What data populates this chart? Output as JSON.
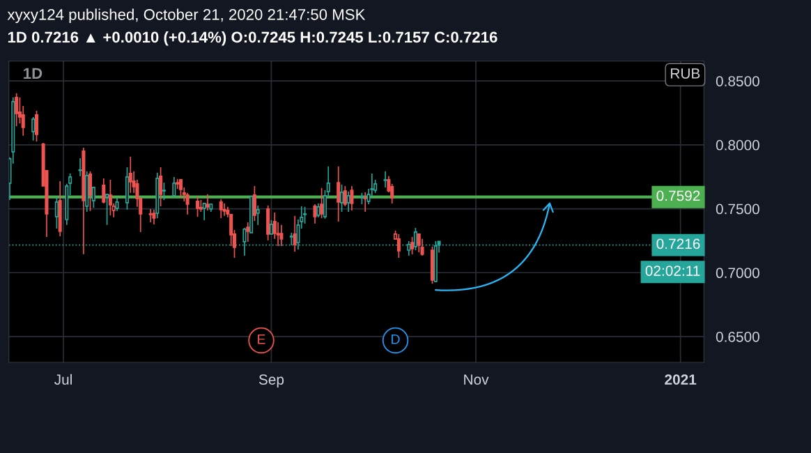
{
  "chart_data": {
    "type": "candlestick",
    "title": "xyxy124 published, October 21, 2020 21:47:50 MSK",
    "subtitle": "1D 0.7216 ▲ +0.0010 (+0.14%) O:0.7245 H:0.7245 L:0.7157 C:0.7216",
    "x": [
      "2020-06-15",
      "2020-06-16",
      "2020-06-17",
      "2020-06-18",
      "2020-06-19",
      "2020-06-22",
      "2020-06-23",
      "2020-06-25",
      "2020-06-26",
      "2020-06-29",
      "2020-06-30",
      "2020-07-02",
      "2020-07-03",
      "2020-07-06",
      "2020-07-07",
      "2020-07-08",
      "2020-07-09",
      "2020-07-10",
      "2020-07-13",
      "2020-07-14",
      "2020-07-15",
      "2020-07-16",
      "2020-07-17",
      "2020-07-20",
      "2020-07-21",
      "2020-07-22",
      "2020-07-23",
      "2020-07-24",
      "2020-07-27",
      "2020-07-28",
      "2020-07-29",
      "2020-07-30",
      "2020-07-31",
      "2020-08-03",
      "2020-08-04",
      "2020-08-05",
      "2020-08-06",
      "2020-08-07",
      "2020-08-10",
      "2020-08-11",
      "2020-08-12",
      "2020-08-13",
      "2020-08-14",
      "2020-08-17",
      "2020-08-18",
      "2020-08-19",
      "2020-08-20",
      "2020-08-21",
      "2020-08-24",
      "2020-08-25",
      "2020-08-26",
      "2020-08-27",
      "2020-08-28",
      "2020-08-31",
      "2020-09-01",
      "2020-09-02",
      "2020-09-03",
      "2020-09-04",
      "2020-09-07",
      "2020-09-08",
      "2020-09-09",
      "2020-09-10",
      "2020-09-11",
      "2020-09-14",
      "2020-09-15",
      "2020-09-16",
      "2020-09-17",
      "2020-09-18",
      "2020-09-21",
      "2020-09-22",
      "2020-09-23",
      "2020-09-24",
      "2020-09-25",
      "2020-09-28",
      "2020-09-29",
      "2020-09-30",
      "2020-10-01",
      "2020-10-02",
      "2020-10-05",
      "2020-10-06",
      "2020-10-07",
      "2020-10-08",
      "2020-10-09",
      "2020-10-12",
      "2020-10-13",
      "2020-10-14",
      "2020-10-15",
      "2020-10-16",
      "2020-10-19",
      "2020-10-20",
      "2020-10-21"
    ],
    "ohlc": [
      [
        0.77,
        0.7902,
        0.7569,
        0.7891
      ],
      [
        0.7945,
        0.8371,
        0.7853,
        0.8338
      ],
      [
        0.8371,
        0.8404,
        0.8147,
        0.8245
      ],
      [
        0.8256,
        0.8371,
        0.8169,
        0.8218
      ],
      [
        0.8235,
        0.8305,
        0.8071,
        0.8136
      ],
      [
        0.8104,
        0.8218,
        0.8033,
        0.8202
      ],
      [
        0.8235,
        0.8267,
        0.8027,
        0.8082
      ],
      [
        0.8005,
        0.8016,
        0.7678,
        0.7678
      ],
      [
        0.7798,
        0.7798,
        0.728,
        0.746
      ],
      [
        0.7438,
        0.7591,
        0.7345,
        0.7553
      ],
      [
        0.7564,
        0.7716,
        0.7285,
        0.7324
      ],
      [
        0.7416,
        0.7695,
        0.7373,
        0.7678
      ],
      [
        0.77,
        0.7776,
        0.7607,
        0.7749
      ],
      [
        0.78,
        0.7896,
        0.7755,
        0.7804
      ],
      [
        0.7951,
        0.7978,
        0.7144,
        0.7564
      ],
      [
        0.752,
        0.7793,
        0.7476,
        0.776
      ],
      [
        0.7771,
        0.7793,
        0.7482,
        0.7607
      ],
      [
        0.7564,
        0.7673,
        0.7509,
        0.7667
      ],
      [
        0.7684,
        0.7738,
        0.7542,
        0.7553
      ],
      [
        0.7591,
        0.7613,
        0.7373,
        0.7613
      ],
      [
        0.7607,
        0.7727,
        0.7449,
        0.7531
      ],
      [
        0.7487,
        0.7542,
        0.7433,
        0.752
      ],
      [
        0.7504,
        0.7585,
        0.7482,
        0.7553
      ],
      [
        0.7547,
        0.7825,
        0.7493,
        0.7749
      ],
      [
        0.7776,
        0.7907,
        0.7624,
        0.7711
      ],
      [
        0.7716,
        0.7793,
        0.7624,
        0.7673
      ],
      [
        0.7695,
        0.7727,
        0.7515,
        0.758
      ],
      [
        0.758,
        0.758,
        0.7318,
        0.746
      ],
      [
        0.746,
        0.7498,
        0.7394,
        0.7455
      ],
      [
        0.7465,
        0.7493,
        0.7378,
        0.7427
      ],
      [
        0.7465,
        0.7782,
        0.7427,
        0.7738
      ],
      [
        0.7755,
        0.7825,
        0.752,
        0.7613
      ],
      [
        0.764,
        0.7705,
        0.7569,
        0.7645
      ],
      [
        0.7602,
        0.7749,
        0.7596,
        0.77
      ],
      [
        0.7705,
        0.7733,
        0.7656,
        0.7695
      ],
      [
        0.7727,
        0.7733,
        0.7591,
        0.7651
      ],
      [
        0.7624,
        0.7667,
        0.7558,
        0.7613
      ],
      [
        0.7607,
        0.7624,
        0.7455,
        0.7536
      ],
      [
        0.7558,
        0.7596,
        0.7438,
        0.7504
      ],
      [
        0.7509,
        0.7569,
        0.7476,
        0.7498
      ],
      [
        0.7504,
        0.7547,
        0.7411,
        0.7542
      ],
      [
        0.7536,
        0.7613,
        0.7487,
        0.7515
      ],
      [
        0.7498,
        0.7542,
        0.7476,
        0.7536
      ],
      [
        0.7553,
        0.7575,
        0.7427,
        0.7493
      ],
      [
        0.7493,
        0.7542,
        0.7444,
        0.7482
      ],
      [
        0.7487,
        0.7515,
        0.7433,
        0.746
      ],
      [
        0.7455,
        0.7455,
        0.7209,
        0.7296
      ],
      [
        0.7302,
        0.7334,
        0.7116,
        0.7198
      ],
      [
        0.7242,
        0.7351,
        0.7133,
        0.734
      ],
      [
        0.7356,
        0.7394,
        0.7242,
        0.7324
      ],
      [
        0.7313,
        0.7596,
        0.7313,
        0.7596
      ],
      [
        0.7607,
        0.7678,
        0.7405,
        0.7449
      ],
      [
        0.7465,
        0.7525,
        0.7373,
        0.7493
      ],
      [
        0.7498,
        0.7525,
        0.7253,
        0.7302
      ],
      [
        0.7302,
        0.7411,
        0.7302,
        0.7378
      ],
      [
        0.74,
        0.7471,
        0.7264,
        0.7307
      ],
      [
        0.7307,
        0.7394,
        0.7209,
        0.7296
      ],
      [
        0.7307,
        0.7373,
        0.7209,
        0.7264
      ],
      [
        0.728,
        0.7313,
        0.7214,
        0.7285
      ],
      [
        0.7302,
        0.7444,
        0.7165,
        0.722
      ],
      [
        0.7236,
        0.7416,
        0.7182,
        0.7373
      ],
      [
        0.74,
        0.752,
        0.7345,
        0.7433
      ],
      [
        0.7455,
        0.7515,
        0.7384,
        0.746
      ],
      [
        0.752,
        0.7536,
        0.7384,
        0.7438
      ],
      [
        0.7449,
        0.7542,
        0.7433,
        0.7515
      ],
      [
        0.7536,
        0.7662,
        0.7427,
        0.746
      ],
      [
        0.7438,
        0.7645,
        0.7422,
        0.7602
      ],
      [
        0.7635,
        0.7831,
        0.7591,
        0.77
      ],
      [
        0.7705,
        0.7831,
        0.74,
        0.7553
      ],
      [
        0.7547,
        0.7689,
        0.7476,
        0.7629
      ],
      [
        0.764,
        0.7678,
        0.752,
        0.7536
      ],
      [
        0.7547,
        0.7635,
        0.7476,
        0.7602
      ],
      [
        0.7645,
        0.7678,
        0.7487,
        0.7542
      ],
      [
        0.7591,
        0.7624,
        0.7536,
        0.7596
      ],
      [
        0.7585,
        0.7629,
        0.7476,
        0.758
      ],
      [
        0.7558,
        0.7656,
        0.7536,
        0.7613
      ],
      [
        0.7651,
        0.7776,
        0.7596,
        0.7656
      ],
      [
        0.7645,
        0.7727,
        0.7624,
        0.7695
      ],
      [
        0.7722,
        0.7793,
        0.7667,
        0.7727
      ],
      [
        0.7727,
        0.7755,
        0.7629,
        0.764
      ],
      [
        0.7673,
        0.7695,
        0.7542,
        0.7585
      ],
      [
        0.7264,
        0.7329,
        0.7258,
        0.7302
      ],
      [
        0.7264,
        0.7302,
        0.7116,
        0.7171
      ],
      [
        0.7176,
        0.7247,
        0.7133,
        0.722
      ],
      [
        0.7236,
        0.728,
        0.7144,
        0.7187
      ],
      [
        0.7204,
        0.7351,
        0.7176,
        0.7318
      ],
      [
        0.7302,
        0.7307,
        0.716,
        0.7214
      ],
      [
        0.7198,
        0.7264,
        0.7133,
        0.7144
      ],
      [
        0.7176,
        0.7204,
        0.6914,
        0.6942
      ],
      [
        0.6931,
        0.7247,
        0.6925,
        0.7209
      ],
      [
        0.7245,
        0.7245,
        0.7157,
        0.7216
      ]
    ],
    "colors": [
      "#26a69a",
      "#26a69a",
      "#ef5350",
      "#ef5350",
      "#ef5350",
      "#26a69a",
      "#ef5350",
      "#ef5350",
      "#ef5350",
      "#26a69a",
      "#ef5350",
      "#26a69a",
      "#26a69a",
      "#26a69a",
      "#ef5350",
      "#26a69a",
      "#ef5350",
      "#26a69a",
      "#ef5350",
      "#26a69a",
      "#ef5350",
      "#ef5350",
      "#26a69a",
      "#26a69a",
      "#ef5350",
      "#ef5350",
      "#ef5350",
      "#ef5350",
      "#ef5350",
      "#ef5350",
      "#26a69a",
      "#ef5350",
      "#26a69a",
      "#26a69a",
      "#ef5350",
      "#ef5350",
      "#ef5350",
      "#ef5350",
      "#ef5350",
      "#ef5350",
      "#26a69a",
      "#ef5350",
      "#26a69a",
      "#ef5350",
      "#ef5350",
      "#ef5350",
      "#ef5350",
      "#ef5350",
      "#26a69a",
      "#ef5350",
      "#26a69a",
      "#ef5350",
      "#26a69a",
      "#ef5350",
      "#26a69a",
      "#ef5350",
      "#ef5350",
      "#ef5350",
      "#26a69a",
      "#ef5350",
      "#26a69a",
      "#26a69a",
      "#26a69a",
      "#ef5350",
      "#26a69a",
      "#ef5350",
      "#26a69a",
      "#26a69a",
      "#ef5350",
      "#26a69a",
      "#ef5350",
      "#26a69a",
      "#ef5350",
      "#26a69a",
      "#ef5350",
      "#26a69a",
      "#26a69a",
      "#26a69a",
      "#26a69a",
      "#ef5350",
      "#ef5350",
      "#ef5350",
      "#ef5350",
      "#26a69a",
      "#ef5350",
      "#26a69a",
      "#ef5350",
      "#ef5350",
      "#ef5350",
      "#26a69a",
      "#26a69a"
    ],
    "xlim": [
      "2020-06-14T18:00",
      "2021-01-08"
    ],
    "xticks": [
      {
        "value": "2020-07-01",
        "label": "Jul"
      },
      {
        "value": "2020-09-01",
        "label": "Sep"
      },
      {
        "value": "2020-11-01",
        "label": "Nov"
      },
      {
        "value": "2021-01-01",
        "label": "2021"
      }
    ],
    "ylim": [
      0.6298,
      0.8655
    ],
    "yticks": [
      {
        "value": 0.65,
        "label": "0.6500"
      },
      {
        "value": 0.7,
        "label": "0.7000"
      },
      {
        "value": 0.75,
        "label": "0.7500"
      },
      {
        "value": 0.8,
        "label": "0.8000"
      },
      {
        "value": 0.85,
        "label": "0.8500"
      }
    ],
    "grid": true,
    "ref_lines": [
      {
        "axis": "y",
        "value": 0.7592,
        "label": "0.7592",
        "color": "#4caf50",
        "line_style": "solid"
      },
      {
        "axis": "y",
        "value": 0.7216,
        "label": "0.7216",
        "color": "#26a69a",
        "line_style": "dotted"
      }
    ],
    "annotations": [
      "1D",
      "RUB",
      "02:02:11",
      {
        "text": "E",
        "x": "2020-08-29",
        "y": 0.647
      },
      {
        "text": "D",
        "x": "2020-10-08",
        "y": 0.647
      }
    ]
  }
}
